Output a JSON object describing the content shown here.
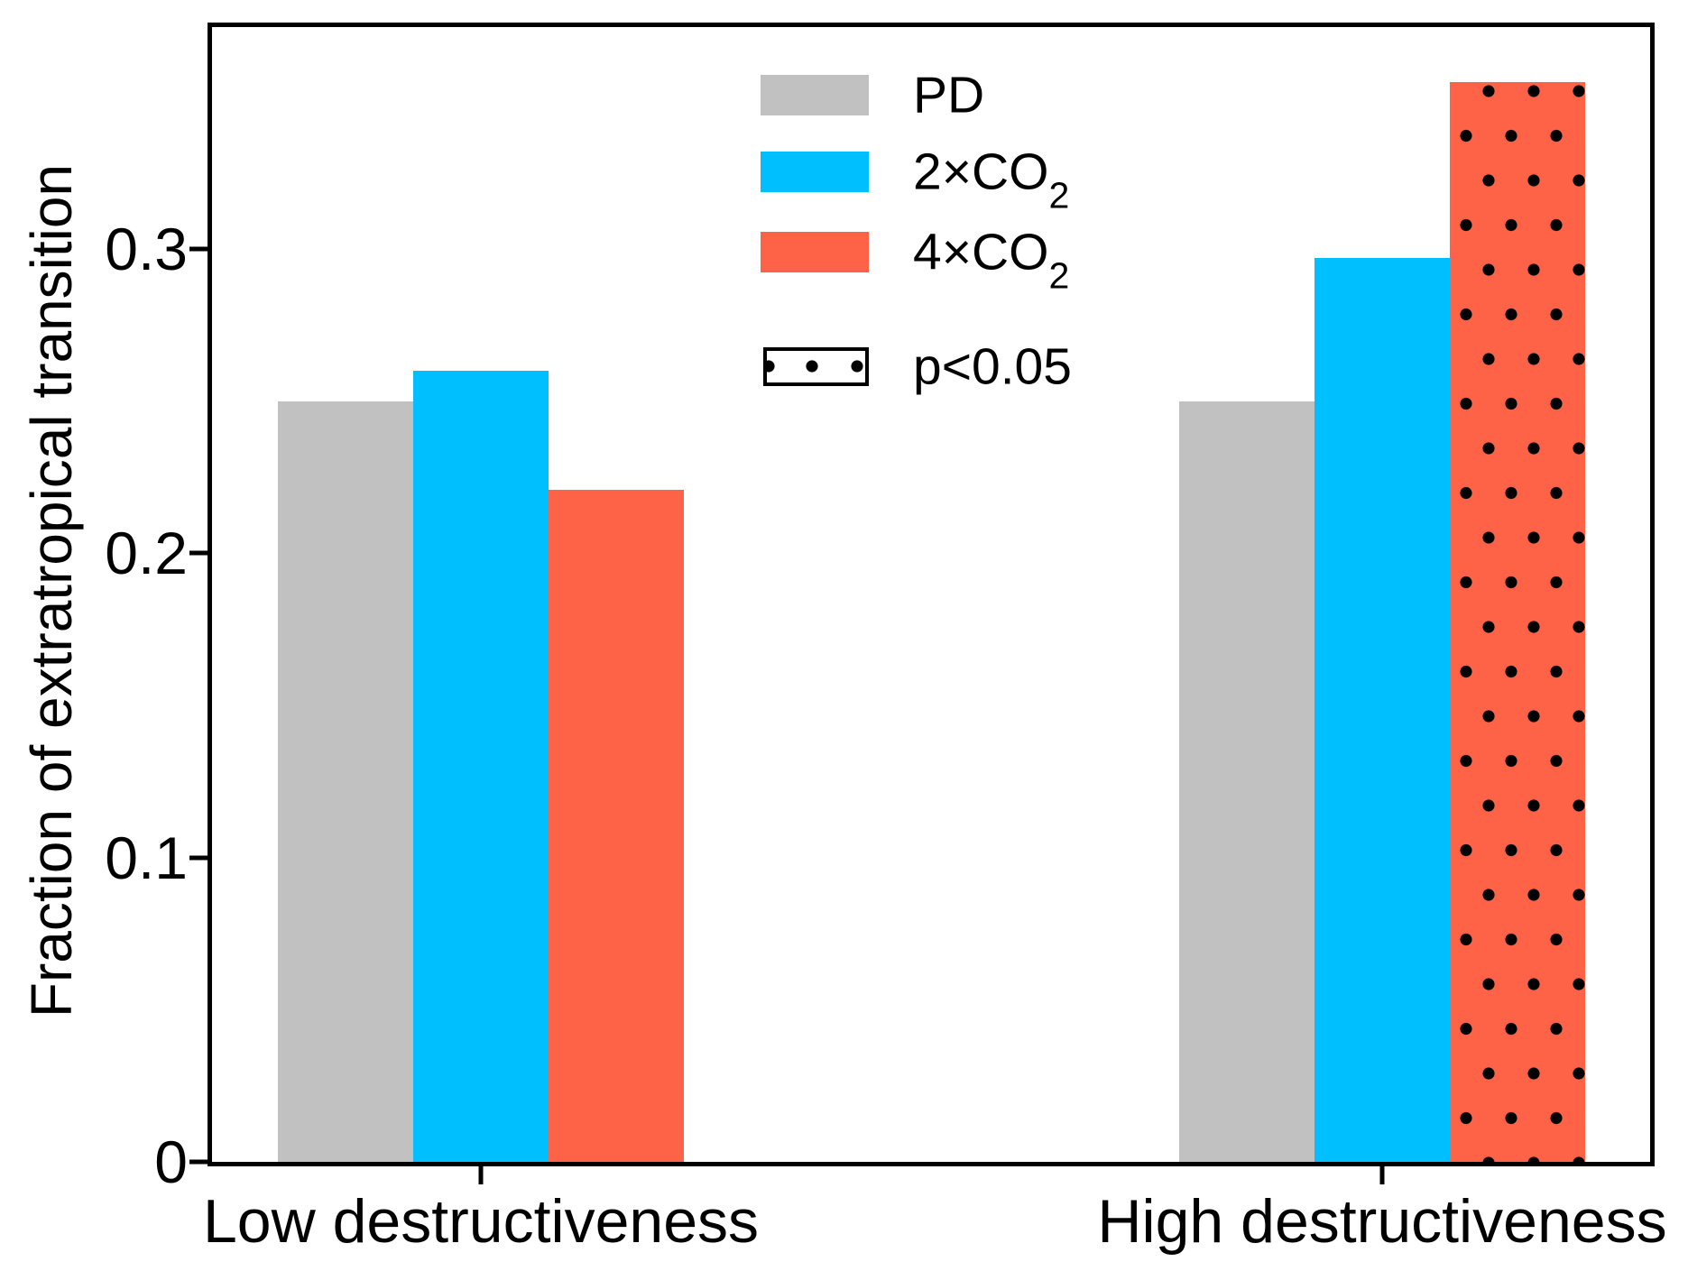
{
  "chart_data": {
    "type": "bar",
    "categories": [
      "Low destructiveness",
      "High destructiveness"
    ],
    "series": [
      {
        "name": "PD",
        "color": "#c1c1c1",
        "values": [
          0.25,
          0.25
        ],
        "significant": [
          false,
          false
        ]
      },
      {
        "name": "2×CO2",
        "color": "#00bfff",
        "values": [
          0.26,
          0.297
        ],
        "significant": [
          false,
          false
        ]
      },
      {
        "name": "4×CO2",
        "color": "#ff6347",
        "values": [
          0.221,
          0.355
        ],
        "significant": [
          false,
          true
        ]
      }
    ],
    "title": "",
    "xlabel": "",
    "ylabel": "Fraction of extratropical transition",
    "ylim": [
      0,
      0.373
    ],
    "yticks": [
      0,
      0.1,
      0.2,
      0.3
    ],
    "ytick_labels": [
      "0",
      "0.1",
      "0.2",
      "0.3"
    ],
    "grid": "off",
    "legend_position": "upper center",
    "significance_note": "black dot hatching marks p<0.05"
  },
  "legend": {
    "items": [
      {
        "label_main": "PD",
        "label_sub": "",
        "color": "#c1c1c1"
      },
      {
        "label_main": "2×CO",
        "label_sub": "2",
        "color": "#00bfff"
      },
      {
        "label_main": "4×CO",
        "label_sub": "2",
        "color": "#ff6347"
      }
    ],
    "significance_label": "p<0.05"
  },
  "colors": {
    "pd": "#c1c1c1",
    "co2x2": "#00bfff",
    "co2x4": "#ff6347",
    "dots": "#000000",
    "axis": "#000000",
    "background": "#ffffff"
  }
}
